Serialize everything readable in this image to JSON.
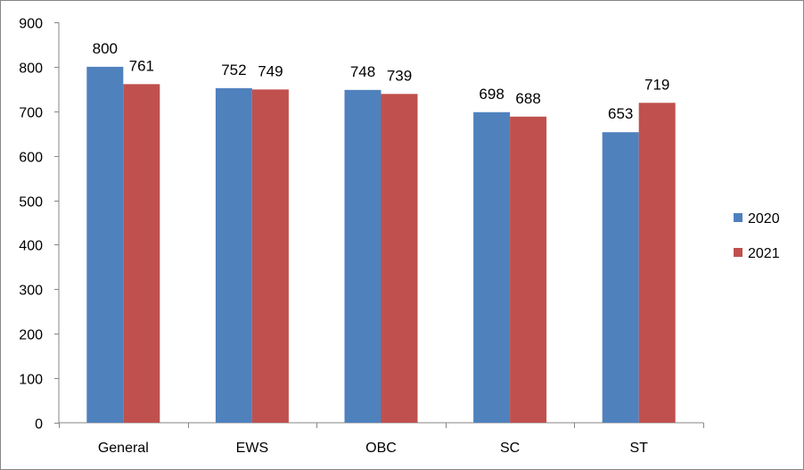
{
  "chart_data": {
    "type": "bar",
    "title": "",
    "xlabel": "",
    "ylabel": "",
    "categories": [
      "General",
      "EWS",
      "OBC",
      "SC",
      "ST"
    ],
    "series": [
      {
        "name": "2020",
        "values": [
          800,
          752,
          748,
          698,
          653
        ],
        "color": "#4F81BD"
      },
      {
        "name": "2021",
        "values": [
          761,
          749,
          739,
          688,
          719
        ],
        "color": "#C0504D"
      }
    ],
    "ylim": [
      0,
      900
    ],
    "yticks": [
      0,
      100,
      200,
      300,
      400,
      500,
      600,
      700,
      800,
      900
    ],
    "grid": false,
    "legend_position": "right",
    "data_labels": true
  }
}
